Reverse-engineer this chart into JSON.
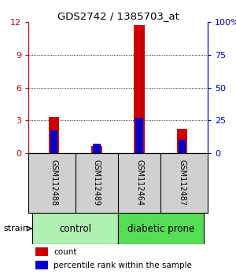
{
  "title": "GDS2742 / 1385703_at",
  "samples": [
    "GSM112488",
    "GSM112489",
    "GSM112464",
    "GSM112487"
  ],
  "count_values": [
    3.3,
    0.6,
    11.7,
    2.2
  ],
  "percentile_values": [
    17,
    7,
    27,
    10
  ],
  "count_color": "#CC0000",
  "percentile_color": "#0000CC",
  "ylim_left": [
    0,
    12
  ],
  "ylim_right": [
    0,
    100
  ],
  "yticks_left": [
    0,
    3,
    6,
    9,
    12
  ],
  "yticks_right": [
    0,
    25,
    50,
    75,
    100
  ],
  "legend_count": "count",
  "legend_pct": "percentile rank within the sample",
  "strain_label": "strain",
  "group_label_control": "control",
  "group_label_diabetic": "diabetic prone",
  "sample_bg": "#d0d0d0",
  "control_color": "#b0f0b0",
  "diabetic_color": "#55dd55"
}
